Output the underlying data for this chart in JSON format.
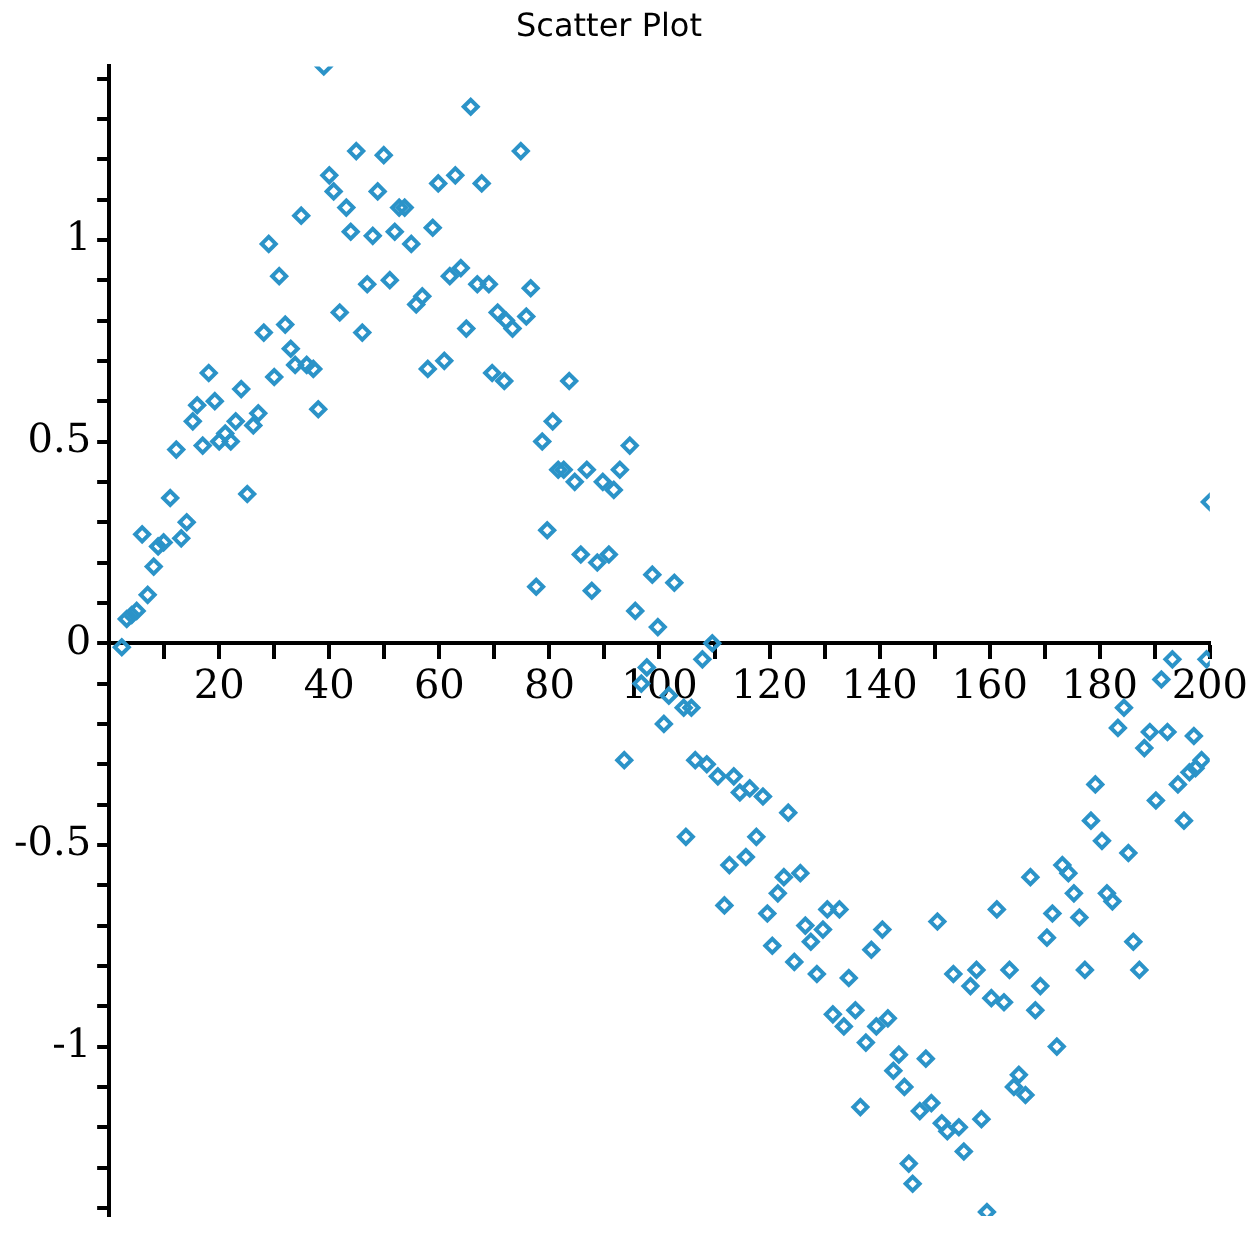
{
  "chart_data": {
    "type": "scatter",
    "title": "Scatter Plot",
    "color": "#2b93c8",
    "marker": "diamond",
    "grid": false,
    "xlim": [
      0,
      200
    ],
    "ylim": [
      -1.42,
      1.43
    ],
    "xticks": [
      {
        "value": 10,
        "label": null
      },
      20,
      {
        "value": 30,
        "label": null
      },
      40,
      {
        "value": 50,
        "label": null
      },
      60,
      {
        "value": 70,
        "label": null
      },
      80,
      {
        "value": 90,
        "label": null
      },
      100,
      {
        "value": 110,
        "label": null
      },
      120,
      {
        "value": 130,
        "label": null
      },
      140,
      {
        "value": 150,
        "label": null
      },
      160,
      {
        "value": 170,
        "label": null
      },
      180,
      {
        "value": 190,
        "label": null
      },
      200
    ],
    "yticks": [
      {
        "value": -1.4,
        "label": null
      },
      {
        "value": -1.3,
        "label": null
      },
      {
        "value": -1.2,
        "label": null
      },
      {
        "value": -1.1,
        "label": null
      },
      -1,
      {
        "value": -0.9,
        "label": null
      },
      {
        "value": -0.8,
        "label": null
      },
      {
        "value": -0.7,
        "label": null
      },
      {
        "value": -0.6,
        "label": null
      },
      -0.5,
      {
        "value": -0.4,
        "label": null
      },
      {
        "value": -0.3,
        "label": null
      },
      {
        "value": -0.2,
        "label": null
      },
      {
        "value": -0.1,
        "label": null
      },
      0,
      {
        "value": 0.1,
        "label": null
      },
      {
        "value": 0.2,
        "label": null
      },
      {
        "value": 0.3,
        "label": null
      },
      {
        "value": 0.4,
        "label": null
      },
      0.5,
      {
        "value": 0.6,
        "label": null
      },
      {
        "value": 0.7,
        "label": null
      },
      {
        "value": 0.8,
        "label": null
      },
      {
        "value": 0.9,
        "label": null
      },
      1,
      {
        "value": 1.1,
        "label": null
      },
      {
        "value": 1.2,
        "label": null
      },
      {
        "value": 1.3,
        "label": null
      },
      {
        "value": 1.4,
        "label": null
      }
    ],
    "x": [
      2.3,
      3.2,
      4.1,
      5.0,
      6.0,
      7.0,
      8.1,
      8.9,
      9.9,
      11.1,
      12.2,
      13.1,
      14.1,
      15.2,
      16.0,
      17.0,
      18.1,
      19.2,
      20.0,
      21.1,
      22.1,
      23.0,
      24.0,
      25.1,
      26.2,
      27.1,
      28.1,
      29.0,
      30.0,
      30.9,
      32.0,
      33.0,
      33.8,
      34.9,
      35.9,
      37.1,
      38.0,
      39.0,
      40.0,
      40.8,
      41.9,
      43.1,
      43.9,
      44.9,
      46.0,
      46.9,
      47.9,
      48.8,
      49.9,
      51.0,
      51.9,
      52.7,
      53.7,
      54.9,
      55.8,
      56.9,
      57.9,
      58.8,
      59.8,
      60.9,
      61.9,
      62.9,
      63.9,
      64.9,
      65.7,
      66.9,
      67.7,
      69.0,
      69.6,
      70.6,
      71.8,
      72.1,
      73.3,
      74.8,
      75.8,
      76.6,
      77.6,
      78.7,
      79.6,
      80.6,
      81.6,
      82.6,
      83.6,
      84.6,
      85.7,
      86.8,
      87.7,
      88.7,
      89.7,
      90.8,
      91.7,
      92.8,
      93.6,
      94.6,
      95.6,
      96.7,
      97.7,
      98.7,
      99.7,
      100.8,
      101.7,
      102.7,
      104.4,
      104.8,
      105.8,
      106.5,
      107.8,
      108.6,
      109.6,
      110.6,
      111.8,
      112.7,
      113.5,
      114.6,
      115.7,
      116.4,
      117.6,
      118.8,
      119.6,
      120.5,
      121.5,
      122.6,
      123.4,
      124.5,
      125.6,
      126.5,
      127.5,
      128.6,
      129.7,
      130.5,
      131.5,
      132.7,
      133.5,
      134.4,
      135.6,
      136.5,
      137.5,
      138.5,
      139.4,
      140.5,
      141.5,
      142.5,
      143.5,
      144.5,
      145.3,
      146.0,
      147.3,
      148.4,
      149.4,
      150.5,
      151.3,
      152.3,
      153.4,
      154.4,
      155.3,
      156.5,
      157.6,
      158.5,
      159.5,
      160.3,
      161.3,
      162.6,
      163.6,
      164.4,
      165.3,
      166.5,
      167.4,
      168.3,
      169.2,
      170.4,
      171.4,
      172.2,
      173.2,
      174.3,
      175.3,
      176.3,
      177.3,
      178.4,
      179.2,
      180.4,
      181.3,
      182.3,
      183.3,
      184.4,
      185.2,
      186.1,
      187.2,
      188.1,
      189.1,
      190.2,
      191.2,
      192.3,
      193.2,
      194.2,
      195.3,
      196.3,
      197.1,
      197.4,
      198.5,
      199.4,
      200
    ],
    "values": [
      -0.01,
      0.06,
      0.07,
      0.08,
      0.27,
      0.12,
      0.19,
      0.24,
      0.25,
      0.36,
      0.48,
      0.26,
      0.3,
      0.55,
      0.59,
      0.49,
      0.67,
      0.6,
      0.5,
      0.52,
      0.5,
      0.55,
      0.63,
      0.37,
      0.54,
      0.57,
      0.77,
      0.99,
      0.66,
      0.91,
      0.79,
      0.73,
      0.69,
      1.06,
      0.69,
      0.68,
      0.58,
      1.43,
      1.16,
      1.12,
      0.82,
      1.08,
      1.02,
      1.22,
      0.77,
      0.89,
      1.01,
      1.12,
      1.21,
      0.9,
      1.02,
      1.08,
      1.08,
      0.99,
      0.84,
      0.86,
      0.68,
      1.03,
      1.14,
      0.7,
      0.91,
      1.16,
      0.93,
      0.78,
      1.33,
      0.89,
      1.14,
      0.89,
      0.67,
      0.82,
      0.65,
      0.8,
      0.78,
      1.22,
      0.81,
      0.88,
      0.14,
      0.5,
      0.28,
      0.55,
      0.43,
      0.43,
      0.65,
      0.4,
      0.22,
      0.43,
      0.13,
      0.2,
      0.4,
      0.22,
      0.38,
      0.43,
      -0.29,
      0.49,
      0.08,
      -0.1,
      -0.06,
      0.17,
      0.04,
      -0.2,
      -0.13,
      0.15,
      -0.16,
      -0.48,
      -0.16,
      -0.29,
      -0.04,
      -0.3,
      0.0,
      -0.33,
      -0.65,
      -0.55,
      -0.33,
      -0.37,
      -0.53,
      -0.36,
      -0.48,
      -0.38,
      -0.67,
      -0.75,
      -0.62,
      -0.58,
      -0.42,
      -0.79,
      -0.57,
      -0.7,
      -0.74,
      -0.82,
      -0.71,
      -0.66,
      -0.92,
      -0.66,
      -0.95,
      -0.83,
      -0.91,
      -1.15,
      -0.99,
      -0.76,
      -0.95,
      -0.71,
      -0.93,
      -1.06,
      -1.02,
      -1.1,
      -1.29,
      -1.34,
      -1.16,
      -1.03,
      -1.14,
      -0.69,
      -1.19,
      -1.21,
      -0.82,
      -1.2,
      -1.26,
      -0.85,
      -0.81,
      -1.18,
      -1.41,
      -0.88,
      -0.66,
      -0.89,
      -0.81,
      -1.1,
      -1.07,
      -1.12,
      -0.58,
      -0.91,
      -0.85,
      -0.73,
      -0.67,
      -1.0,
      -0.55,
      -0.57,
      -0.62,
      -0.68,
      -0.81,
      -0.44,
      -0.35,
      -0.49,
      -0.62,
      -0.64,
      -0.21,
      -0.16,
      -0.52,
      -0.74,
      -0.81,
      -0.26,
      -0.22,
      -0.39,
      -0.09,
      -0.22,
      -0.04,
      -0.35,
      -0.44,
      -0.32,
      -0.23,
      -0.31,
      -0.29,
      -0.04,
      0.35
    ]
  }
}
